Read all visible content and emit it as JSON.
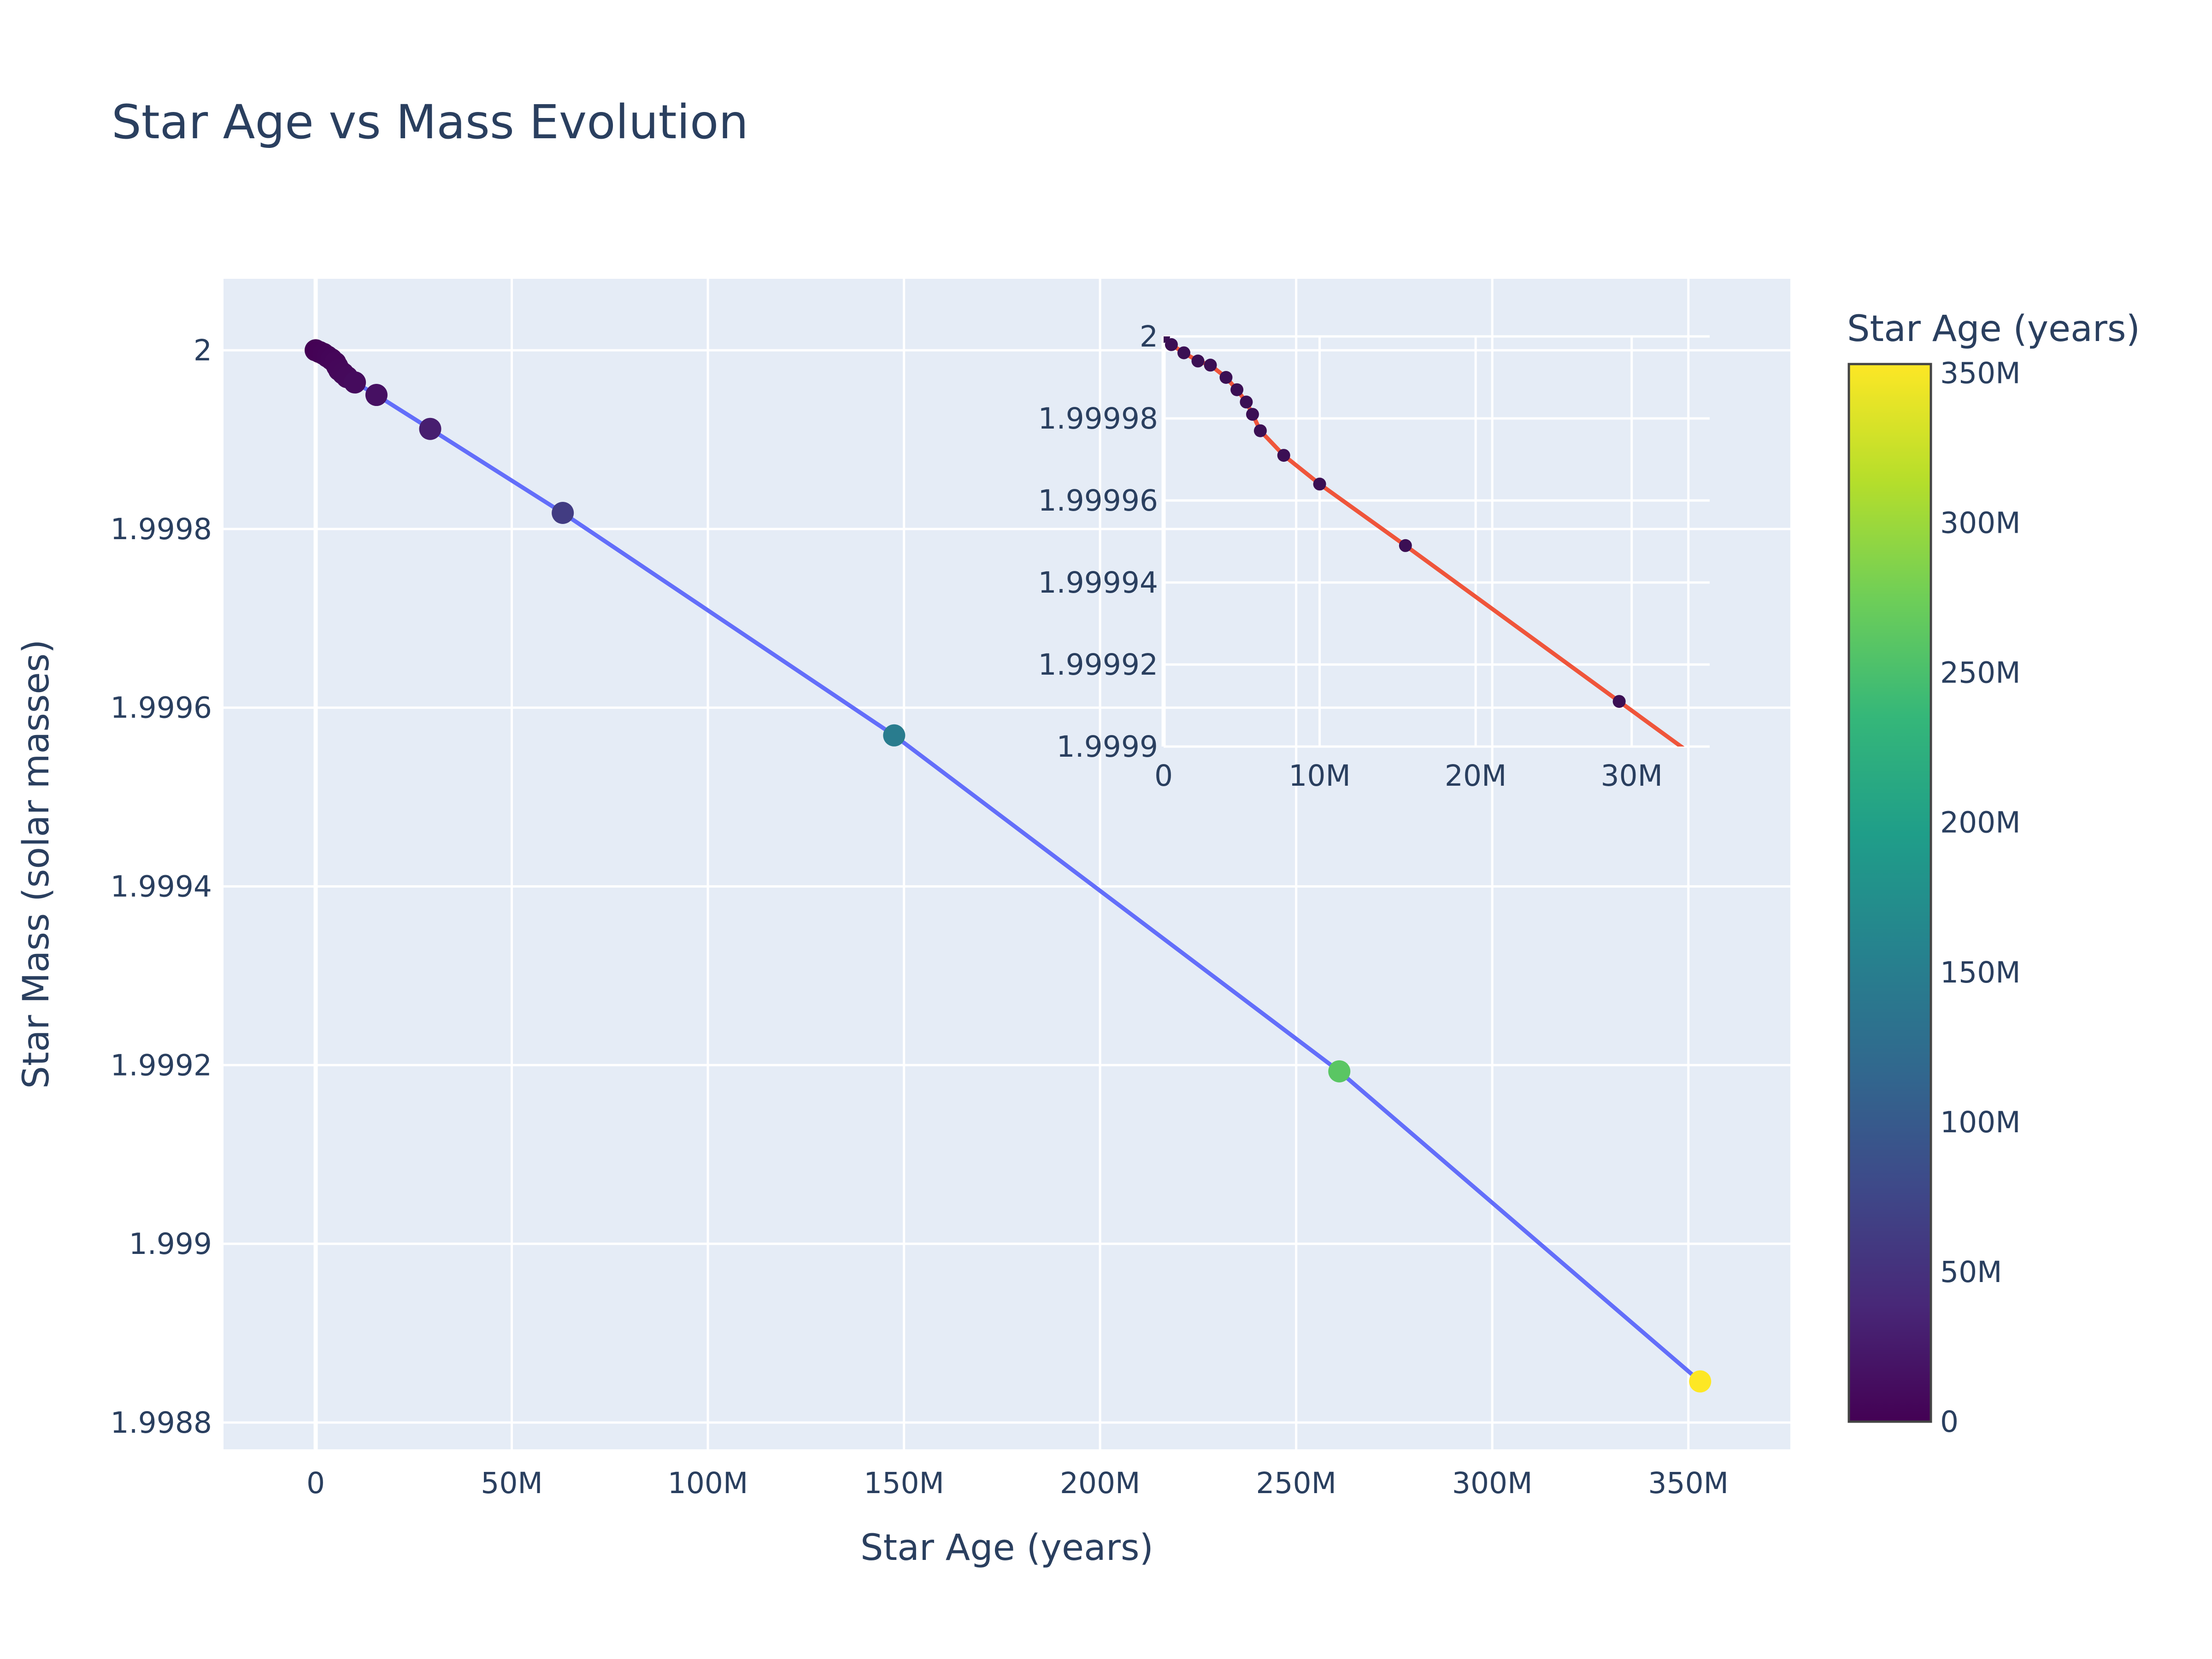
{
  "chart_data": [
    {
      "type": "scatter",
      "mode": "lines+markers",
      "title": "Star Age vs Mass Evolution",
      "xlabel": "Star Age (years)",
      "ylabel": "Star Mass (solar masses)",
      "xlim": [
        -23500000,
        376000000
      ],
      "ylim": [
        1.99877,
        2.00008
      ],
      "x_ticks": [
        {
          "value": 0,
          "label": "0"
        },
        {
          "value": 50000000,
          "label": "50M"
        },
        {
          "value": 100000000,
          "label": "100M"
        },
        {
          "value": 150000000,
          "label": "150M"
        },
        {
          "value": 200000000,
          "label": "200M"
        },
        {
          "value": 250000000,
          "label": "250M"
        },
        {
          "value": 300000000,
          "label": "300M"
        },
        {
          "value": 350000000,
          "label": "350M"
        }
      ],
      "y_ticks": [
        {
          "value": 2.0,
          "label": "2"
        },
        {
          "value": 1.9998,
          "label": "1.9998"
        },
        {
          "value": 1.9996,
          "label": "1.9996"
        },
        {
          "value": 1.9994,
          "label": "1.9994"
        },
        {
          "value": 1.9992,
          "label": "1.9992"
        },
        {
          "value": 1.999,
          "label": "1.999"
        },
        {
          "value": 1.9988,
          "label": "1.9988"
        }
      ],
      "grid": true,
      "line_color": "#636efa",
      "marker_colorscale": "Viridis",
      "x": [
        0,
        1000000,
        2000000,
        3000000,
        4000000,
        5000000,
        5500000,
        6000000,
        7000000,
        8000000,
        10000000,
        15500000,
        29200000,
        63000000,
        147500000,
        261000000,
        353000000
      ],
      "y": [
        2.0,
        1.999998,
        1.999996,
        1.999993,
        1.99999,
        1.999986,
        1.999982,
        1.999978,
        1.999974,
        1.99997,
        1.999964,
        1.99995,
        1.999912,
        1.999818,
        1.999569,
        1.999193,
        1.998846
      ],
      "colorbar": {
        "title": "Star Age (years)",
        "range": [
          0,
          353000000
        ],
        "ticks": [
          {
            "value": 0,
            "label": "0"
          },
          {
            "value": 50000000,
            "label": "50M"
          },
          {
            "value": 100000000,
            "label": "100M"
          },
          {
            "value": 150000000,
            "label": "150M"
          },
          {
            "value": 200000000,
            "label": "200M"
          },
          {
            "value": 250000000,
            "label": "250M"
          },
          {
            "value": 300000000,
            "label": "300M"
          },
          {
            "value": 350000000,
            "label": "350M"
          }
        ]
      }
    },
    {
      "type": "scatter",
      "mode": "lines+markers",
      "title": "",
      "xlabel": "",
      "ylabel": "",
      "xlim": [
        0,
        35000000
      ],
      "ylim": [
        1.9999,
        2.0
      ],
      "x_ticks": [
        {
          "value": 0,
          "label": "0"
        },
        {
          "value": 10000000,
          "label": "10M"
        },
        {
          "value": 20000000,
          "label": "20M"
        },
        {
          "value": 30000000,
          "label": "30M"
        }
      ],
      "y_ticks": [
        {
          "value": 2.0,
          "label": "2"
        },
        {
          "value": 1.99998,
          "label": "1.99998"
        },
        {
          "value": 1.99996,
          "label": "1.99996"
        },
        {
          "value": 1.99994,
          "label": "1.99994"
        },
        {
          "value": 1.99992,
          "label": "1.99992"
        },
        {
          "value": 1.9999,
          "label": "1.9999"
        }
      ],
      "grid": true,
      "line_color": "#ef553b",
      "marker_color": "#3b0f54",
      "x": [
        0,
        500000,
        1300000,
        2200000,
        3000000,
        4000000,
        4700000,
        5300000,
        5700000,
        6200000,
        7700000,
        10000000,
        15500000,
        29200000
      ],
      "y": [
        2.0,
        1.999998,
        1.999996,
        1.999994,
        1.999993,
        1.99999,
        1.999987,
        1.999984,
        1.999981,
        1.999977,
        1.999971,
        1.999964,
        1.999949,
        1.999911
      ]
    }
  ]
}
